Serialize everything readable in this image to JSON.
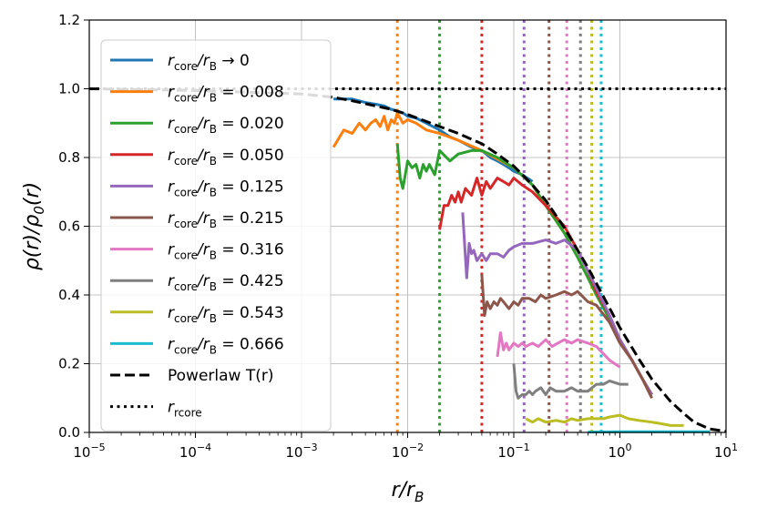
{
  "chart_data": {
    "type": "line",
    "title": "",
    "xlabel": "r/r_B",
    "ylabel": "ρ(r)/ρ_0(r)",
    "xscale": "log",
    "xlim": [
      1e-05,
      10
    ],
    "ylim": [
      0.0,
      1.2
    ],
    "grid": true,
    "legend_position": "upper-left",
    "x_ticks": [
      {
        "value": 1e-05,
        "base": "10",
        "exp": "−5"
      },
      {
        "value": 0.0001,
        "base": "10",
        "exp": "−4"
      },
      {
        "value": 0.001,
        "base": "10",
        "exp": "−3"
      },
      {
        "value": 0.01,
        "base": "10",
        "exp": "−2"
      },
      {
        "value": 0.1,
        "base": "10",
        "exp": "−1"
      },
      {
        "value": 1,
        "base": "10",
        "exp": "0"
      },
      {
        "value": 10,
        "base": "10",
        "exp": "1"
      }
    ],
    "y_ticks": [
      {
        "value": 0.0,
        "label": "0.0"
      },
      {
        "value": 0.2,
        "label": "0.2"
      },
      {
        "value": 0.4,
        "label": "0.4"
      },
      {
        "value": 0.6,
        "label": "0.6"
      },
      {
        "value": 0.8,
        "label": "0.8"
      },
      {
        "value": 1.0,
        "label": "1.0"
      },
      {
        "value": 1.2,
        "label": "1.2"
      }
    ],
    "series": [
      {
        "name": "r_core/r_B → 0",
        "color": "#1f77b4",
        "x": [
          0.002,
          0.003,
          0.004,
          0.005,
          0.006,
          0.007,
          0.008,
          0.009,
          0.01,
          0.012,
          0.015,
          0.02,
          0.025,
          0.03,
          0.04,
          0.05,
          0.06,
          0.07,
          0.08,
          0.09,
          0.1,
          0.12,
          0.15
        ],
        "y": [
          0.97,
          0.97,
          0.96,
          0.955,
          0.95,
          0.94,
          0.935,
          0.93,
          0.92,
          0.915,
          0.9,
          0.88,
          0.86,
          0.85,
          0.83,
          0.82,
          0.8,
          0.79,
          0.78,
          0.77,
          0.76,
          0.75,
          0.73
        ]
      },
      {
        "name": "r_core/r_B = 0.008",
        "color": "#ff7f0e",
        "x": [
          0.002,
          0.0025,
          0.003,
          0.0035,
          0.004,
          0.0045,
          0.005,
          0.0055,
          0.006,
          0.0065,
          0.007,
          0.0075,
          0.008,
          0.009,
          0.01,
          0.012,
          0.015,
          0.02,
          0.03,
          0.05,
          0.1,
          0.15,
          0.2,
          0.3,
          0.4,
          0.5,
          0.6,
          0.8,
          1.0,
          1.3,
          1.6,
          2.0
        ],
        "y": [
          0.83,
          0.88,
          0.87,
          0.9,
          0.88,
          0.9,
          0.91,
          0.89,
          0.92,
          0.88,
          0.91,
          0.9,
          0.93,
          0.9,
          0.91,
          0.9,
          0.88,
          0.87,
          0.85,
          0.82,
          0.77,
          0.72,
          0.66,
          0.58,
          0.51,
          0.45,
          0.4,
          0.33,
          0.27,
          0.21,
          0.16,
          0.11
        ]
      },
      {
        "name": "r_core/r_B = 0.020",
        "color": "#2ca02c",
        "x": [
          0.008,
          0.0085,
          0.009,
          0.0095,
          0.01,
          0.011,
          0.012,
          0.013,
          0.014,
          0.015,
          0.016,
          0.018,
          0.02,
          0.025,
          0.03,
          0.04,
          0.05,
          0.07,
          0.1,
          0.15,
          0.2,
          0.3,
          0.4,
          0.5,
          0.6,
          0.8,
          1.0,
          1.3,
          1.6,
          2.0
        ],
        "y": [
          0.84,
          0.74,
          0.71,
          0.75,
          0.79,
          0.77,
          0.78,
          0.74,
          0.78,
          0.76,
          0.78,
          0.75,
          0.82,
          0.79,
          0.81,
          0.82,
          0.82,
          0.8,
          0.77,
          0.72,
          0.66,
          0.58,
          0.51,
          0.45,
          0.4,
          0.33,
          0.27,
          0.21,
          0.16,
          0.11
        ]
      },
      {
        "name": "r_core/r_B = 0.050",
        "color": "#d62728",
        "x": [
          0.02,
          0.022,
          0.024,
          0.026,
          0.028,
          0.03,
          0.032,
          0.035,
          0.04,
          0.045,
          0.05,
          0.055,
          0.06,
          0.07,
          0.08,
          0.09,
          0.1,
          0.12,
          0.15,
          0.2,
          0.3,
          0.4,
          0.5,
          0.6,
          0.8,
          1.0,
          1.3,
          1.6,
          2.0
        ],
        "y": [
          0.59,
          0.66,
          0.66,
          0.69,
          0.67,
          0.7,
          0.67,
          0.71,
          0.69,
          0.74,
          0.69,
          0.73,
          0.71,
          0.74,
          0.73,
          0.72,
          0.74,
          0.72,
          0.7,
          0.66,
          0.6,
          0.53,
          0.47,
          0.41,
          0.34,
          0.27,
          0.21,
          0.16,
          0.11
        ]
      },
      {
        "name": "r_core/r_B = 0.125",
        "color": "#9467bd",
        "x": [
          0.033,
          0.036,
          0.038,
          0.04,
          0.042,
          0.045,
          0.05,
          0.055,
          0.06,
          0.07,
          0.08,
          0.09,
          0.1,
          0.12,
          0.15,
          0.2,
          0.25,
          0.3,
          0.4,
          0.5,
          0.6,
          0.8,
          1.0,
          1.3,
          1.6,
          2.0
        ],
        "y": [
          0.64,
          0.45,
          0.55,
          0.52,
          0.53,
          0.5,
          0.52,
          0.5,
          0.52,
          0.52,
          0.51,
          0.53,
          0.54,
          0.55,
          0.55,
          0.56,
          0.55,
          0.56,
          0.53,
          0.47,
          0.42,
          0.34,
          0.27,
          0.21,
          0.16,
          0.11
        ]
      },
      {
        "name": "r_core/r_B = 0.215",
        "color": "#8c564b",
        "x": [
          0.05,
          0.053,
          0.056,
          0.06,
          0.065,
          0.07,
          0.075,
          0.08,
          0.09,
          0.1,
          0.11,
          0.12,
          0.14,
          0.16,
          0.18,
          0.2,
          0.25,
          0.3,
          0.35,
          0.4,
          0.5,
          0.6,
          0.8,
          1.0,
          1.3,
          1.6,
          2.0
        ],
        "y": [
          0.46,
          0.34,
          0.38,
          0.36,
          0.38,
          0.37,
          0.39,
          0.38,
          0.36,
          0.38,
          0.37,
          0.39,
          0.39,
          0.38,
          0.4,
          0.39,
          0.4,
          0.41,
          0.4,
          0.41,
          0.38,
          0.37,
          0.32,
          0.26,
          0.21,
          0.16,
          0.1
        ]
      },
      {
        "name": "r_core/r_B = 0.316",
        "color": "#e377c2",
        "x": [
          0.07,
          0.075,
          0.08,
          0.085,
          0.09,
          0.1,
          0.11,
          0.12,
          0.13,
          0.15,
          0.17,
          0.2,
          0.23,
          0.26,
          0.3,
          0.35,
          0.4,
          0.5,
          0.6,
          0.8,
          1.0
        ],
        "y": [
          0.22,
          0.29,
          0.24,
          0.26,
          0.24,
          0.26,
          0.25,
          0.26,
          0.25,
          0.26,
          0.25,
          0.27,
          0.25,
          0.26,
          0.27,
          0.26,
          0.27,
          0.26,
          0.25,
          0.21,
          0.19
        ]
      },
      {
        "name": "r_core/r_B = 0.425",
        "color": "#7f7f7f",
        "x": [
          0.1,
          0.105,
          0.11,
          0.12,
          0.13,
          0.14,
          0.15,
          0.16,
          0.18,
          0.2,
          0.22,
          0.25,
          0.3,
          0.35,
          0.4,
          0.5,
          0.6,
          0.7,
          0.8,
          1.0,
          1.2
        ],
        "y": [
          0.2,
          0.12,
          0.1,
          0.11,
          0.11,
          0.12,
          0.11,
          0.12,
          0.13,
          0.11,
          0.13,
          0.12,
          0.12,
          0.13,
          0.12,
          0.12,
          0.14,
          0.14,
          0.15,
          0.14,
          0.14
        ]
      },
      {
        "name": "r_core/r_B = 0.543",
        "color": "#bcbd22",
        "x": [
          0.13,
          0.15,
          0.17,
          0.2,
          0.25,
          0.3,
          0.35,
          0.4,
          0.5,
          0.6,
          0.7,
          0.8,
          1.0,
          1.2,
          1.5,
          2.0,
          2.5,
          3.0,
          4.0
        ],
        "y": [
          0.04,
          0.03,
          0.04,
          0.03,
          0.035,
          0.03,
          0.04,
          0.035,
          0.04,
          0.04,
          0.04,
          0.045,
          0.05,
          0.04,
          0.035,
          0.03,
          0.025,
          0.02,
          0.02
        ]
      },
      {
        "name": "r_core/r_B = 0.666",
        "color": "#17becf",
        "x": [
          0.5,
          1.0,
          2.0,
          3.0,
          4.0,
          5.0,
          6.0,
          7.0
        ],
        "y": [
          0.001,
          0.002,
          0.002,
          0.002,
          0.002,
          0.002,
          0.002,
          0.002
        ]
      },
      {
        "name": "Powerlaw T(r)",
        "color": "#000000",
        "dash": "dashed",
        "x": [
          1e-05,
          0.0001,
          0.001,
          0.002,
          0.003,
          0.005,
          0.007,
          0.01,
          0.015,
          0.02,
          0.03,
          0.05,
          0.07,
          0.1,
          0.15,
          0.2,
          0.3,
          0.4,
          0.5,
          0.7,
          1.0,
          1.5,
          2.0,
          3.0,
          4.0,
          5.0,
          7.0,
          10.0
        ],
        "y": [
          1.0,
          0.995,
          0.985,
          0.975,
          0.965,
          0.95,
          0.94,
          0.925,
          0.905,
          0.89,
          0.87,
          0.84,
          0.81,
          0.775,
          0.72,
          0.675,
          0.595,
          0.53,
          0.48,
          0.395,
          0.305,
          0.215,
          0.155,
          0.09,
          0.055,
          0.03,
          0.01,
          0.003
        ]
      },
      {
        "name": "r_rcore",
        "color": "#000000",
        "dash": "dotted",
        "x": [
          1e-05,
          10
        ],
        "y": [
          1.0,
          1.0
        ]
      }
    ],
    "vertical_lines": [
      {
        "x": 0.008,
        "color": "#ff7f0e"
      },
      {
        "x": 0.02,
        "color": "#2ca02c"
      },
      {
        "x": 0.05,
        "color": "#d62728"
      },
      {
        "x": 0.125,
        "color": "#9467bd"
      },
      {
        "x": 0.215,
        "color": "#8c564b"
      },
      {
        "x": 0.316,
        "color": "#e377c2"
      },
      {
        "x": 0.425,
        "color": "#7f7f7f"
      },
      {
        "x": 0.543,
        "color": "#bcbd22"
      },
      {
        "x": 0.666,
        "color": "#17becf"
      }
    ],
    "legend": [
      {
        "series": 0,
        "name_main": "r",
        "sub1": "core",
        "mid": "/r",
        "sub2": "B",
        "tail": " → 0"
      },
      {
        "series": 1,
        "name_main": "r",
        "sub1": "core",
        "mid": "/r",
        "sub2": "B",
        "tail": " = 0.008"
      },
      {
        "series": 2,
        "name_main": "r",
        "sub1": "core",
        "mid": "/r",
        "sub2": "B",
        "tail": " = 0.020"
      },
      {
        "series": 3,
        "name_main": "r",
        "sub1": "core",
        "mid": "/r",
        "sub2": "B",
        "tail": " = 0.050"
      },
      {
        "series": 4,
        "name_main": "r",
        "sub1": "core",
        "mid": "/r",
        "sub2": "B",
        "tail": " = 0.125"
      },
      {
        "series": 5,
        "name_main": "r",
        "sub1": "core",
        "mid": "/r",
        "sub2": "B",
        "tail": " = 0.215"
      },
      {
        "series": 6,
        "name_main": "r",
        "sub1": "core",
        "mid": "/r",
        "sub2": "B",
        "tail": " = 0.316"
      },
      {
        "series": 7,
        "name_main": "r",
        "sub1": "core",
        "mid": "/r",
        "sub2": "B",
        "tail": " = 0.425"
      },
      {
        "series": 8,
        "name_main": "r",
        "sub1": "core",
        "mid": "/r",
        "sub2": "B",
        "tail": " = 0.543"
      },
      {
        "series": 9,
        "name_main": "r",
        "sub1": "core",
        "mid": "/r",
        "sub2": "B",
        "tail": " = 0.666"
      },
      {
        "series": 10,
        "plain": "Powerlaw T(r)"
      },
      {
        "series": 11,
        "name_main": "r",
        "sub1": "rcore"
      }
    ]
  }
}
